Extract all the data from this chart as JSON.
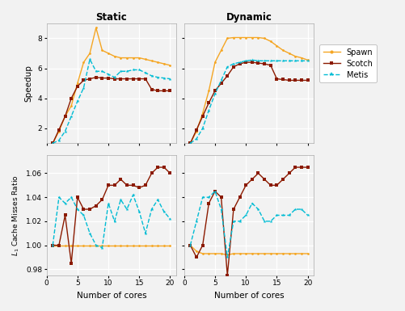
{
  "cores": [
    1,
    2,
    3,
    4,
    5,
    6,
    7,
    8,
    9,
    10,
    11,
    12,
    13,
    14,
    15,
    16,
    17,
    18,
    19,
    20
  ],
  "static_spawn_speedup": [
    1.0,
    1.8,
    2.8,
    3.5,
    5.0,
    6.4,
    7.0,
    8.7,
    7.2,
    7.0,
    6.8,
    6.7,
    6.7,
    6.7,
    6.7,
    6.6,
    6.5,
    6.4,
    6.3,
    6.2
  ],
  "static_scotch_speedup": [
    1.0,
    1.9,
    2.8,
    4.0,
    4.8,
    5.2,
    5.3,
    5.4,
    5.35,
    5.35,
    5.3,
    5.3,
    5.3,
    5.3,
    5.3,
    5.3,
    4.6,
    4.5,
    4.5,
    4.5
  ],
  "static_metis_speedup": [
    1.0,
    1.2,
    1.8,
    2.8,
    3.8,
    4.7,
    6.6,
    5.8,
    5.8,
    5.6,
    5.4,
    5.8,
    5.8,
    5.9,
    5.9,
    5.7,
    5.5,
    5.4,
    5.35,
    5.3
  ],
  "dynamic_spawn_speedup": [
    1.0,
    1.8,
    3.0,
    4.5,
    6.4,
    7.2,
    8.0,
    8.05,
    8.05,
    8.05,
    8.05,
    8.05,
    8.0,
    7.8,
    7.5,
    7.2,
    7.0,
    6.8,
    6.7,
    6.55
  ],
  "dynamic_scotch_speedup": [
    1.0,
    1.9,
    2.8,
    3.7,
    4.5,
    5.0,
    5.5,
    6.1,
    6.3,
    6.4,
    6.4,
    6.35,
    6.3,
    6.2,
    5.3,
    5.25,
    5.2,
    5.2,
    5.2,
    5.2
  ],
  "dynamic_metis_speedup": [
    1.0,
    1.3,
    2.0,
    3.2,
    4.3,
    5.2,
    6.1,
    6.3,
    6.4,
    6.5,
    6.55,
    6.5,
    6.5,
    6.5,
    6.5,
    6.5,
    6.5,
    6.5,
    6.5,
    6.5
  ],
  "static_spawn_cache": [
    1.0,
    1.0,
    1.0,
    1.0,
    1.0,
    1.0,
    1.0,
    1.0,
    1.0,
    1.0,
    1.0,
    1.0,
    1.0,
    1.0,
    1.0,
    1.0,
    1.0,
    1.0,
    1.0,
    1.0
  ],
  "static_scotch_cache": [
    1.0,
    1.0,
    1.025,
    0.985,
    1.04,
    1.03,
    1.03,
    1.033,
    1.038,
    1.05,
    1.05,
    1.055,
    1.05,
    1.05,
    1.048,
    1.05,
    1.06,
    1.065,
    1.065,
    1.06
  ],
  "static_metis_cache": [
    1.0,
    1.04,
    1.035,
    1.04,
    1.03,
    1.025,
    1.01,
    1.0,
    0.998,
    1.035,
    1.02,
    1.038,
    1.03,
    1.042,
    1.028,
    1.01,
    1.03,
    1.038,
    1.028,
    1.022
  ],
  "dynamic_spawn_cache": [
    1.0,
    0.995,
    0.993,
    0.993,
    0.993,
    0.993,
    0.992,
    0.993,
    0.993,
    0.993,
    0.993,
    0.993,
    0.993,
    0.993,
    0.993,
    0.993,
    0.993,
    0.993,
    0.993,
    0.993
  ],
  "dynamic_scotch_cache": [
    1.0,
    0.99,
    1.0,
    1.035,
    1.045,
    1.04,
    0.975,
    1.03,
    1.04,
    1.05,
    1.055,
    1.06,
    1.055,
    1.05,
    1.05,
    1.055,
    1.06,
    1.065,
    1.065,
    1.065
  ],
  "dynamic_metis_cache": [
    1.0,
    1.02,
    1.04,
    1.04,
    1.045,
    1.03,
    0.99,
    1.02,
    1.02,
    1.025,
    1.035,
    1.03,
    1.02,
    1.02,
    1.025,
    1.025,
    1.025,
    1.03,
    1.03,
    1.025
  ],
  "spawn_color": "#f5a623",
  "scotch_color": "#8b1a00",
  "metis_color": "#00bcd4",
  "title_static": "Static",
  "title_dynamic": "Dynamic",
  "ylabel_speedup": "Speedup",
  "ylabel_cache": "$L_1$ Cache Misses Ratio",
  "xlabel": "Number of cores",
  "speedup_ylim": [
    1,
    9
  ],
  "speedup_yticks": [
    2,
    4,
    6,
    8
  ],
  "cache_ylim": [
    0.975,
    1.075
  ],
  "cache_yticks": [
    0.98,
    1.0,
    1.02,
    1.04,
    1.06
  ],
  "xticks": [
    0,
    5,
    10,
    15,
    20
  ],
  "bg_color": "#f2f2f2",
  "ax_bg_color": "#f2f2f2"
}
